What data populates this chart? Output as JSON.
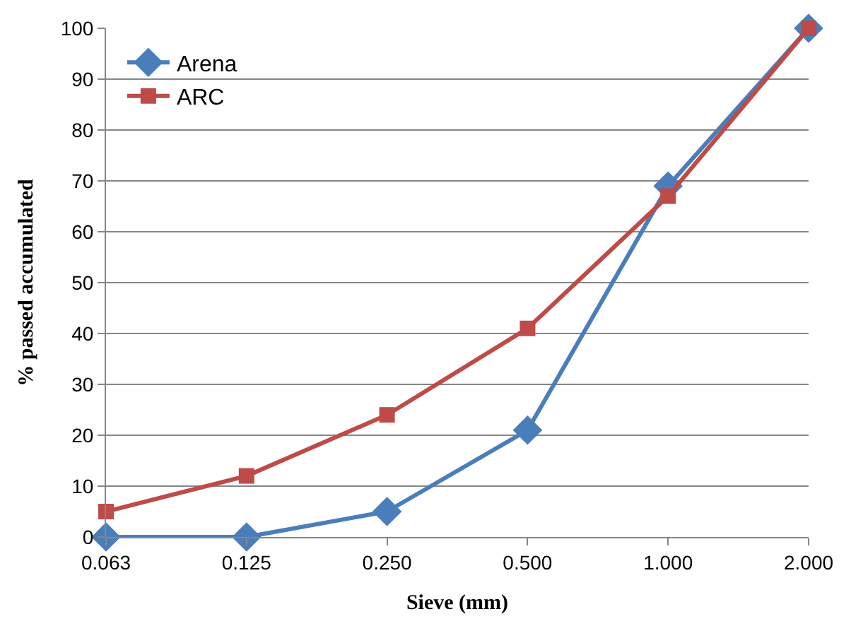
{
  "chart_data": {
    "type": "line",
    "xlabel": "Sieve (mm)",
    "ylabel": "% passed accumulated",
    "categories": [
      "0.063",
      "0.125",
      "0.250",
      "0.500",
      "1.000",
      "2.000"
    ],
    "series": [
      {
        "name": "Arena",
        "color": "#4a7ebb",
        "marker": "diamond",
        "values": [
          0,
          0,
          5,
          21,
          69,
          100
        ]
      },
      {
        "name": "ARC",
        "color": "#be4b48",
        "marker": "square",
        "values": [
          5,
          12,
          24,
          41,
          67,
          100
        ]
      }
    ],
    "ylim": [
      0,
      100
    ],
    "yticks": [
      0,
      10,
      20,
      30,
      40,
      50,
      60,
      70,
      80,
      90,
      100
    ],
    "grid": "y",
    "legend": "top left",
    "line_style": "solid"
  }
}
